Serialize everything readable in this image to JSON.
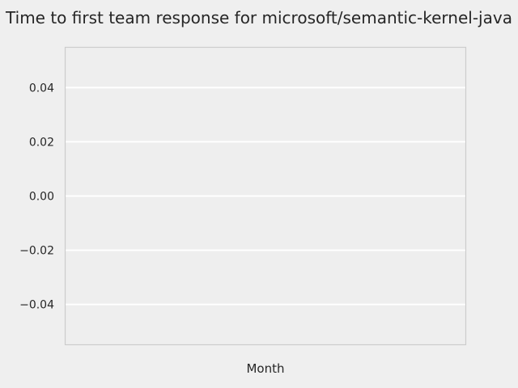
{
  "chart_data": {
    "type": "line",
    "title": "Time to first team response for microsoft/semantic-kernel-java",
    "xlabel": "Month",
    "ylabel": "",
    "x": [],
    "series": [],
    "ylim": [
      -0.055,
      0.055
    ],
    "yticks": [
      0.04,
      0.02,
      0.0,
      -0.02,
      -0.04
    ],
    "ytick_labels": [
      "0.04",
      "0.02",
      "0.00",
      "−0.02",
      "−0.04"
    ],
    "grid": true,
    "legend": "none",
    "colors": {
      "background": "#efefef",
      "axes_face": "#eeeeee",
      "grid": "#ffffff",
      "spine": "#cccccc",
      "text": "#262626"
    }
  }
}
